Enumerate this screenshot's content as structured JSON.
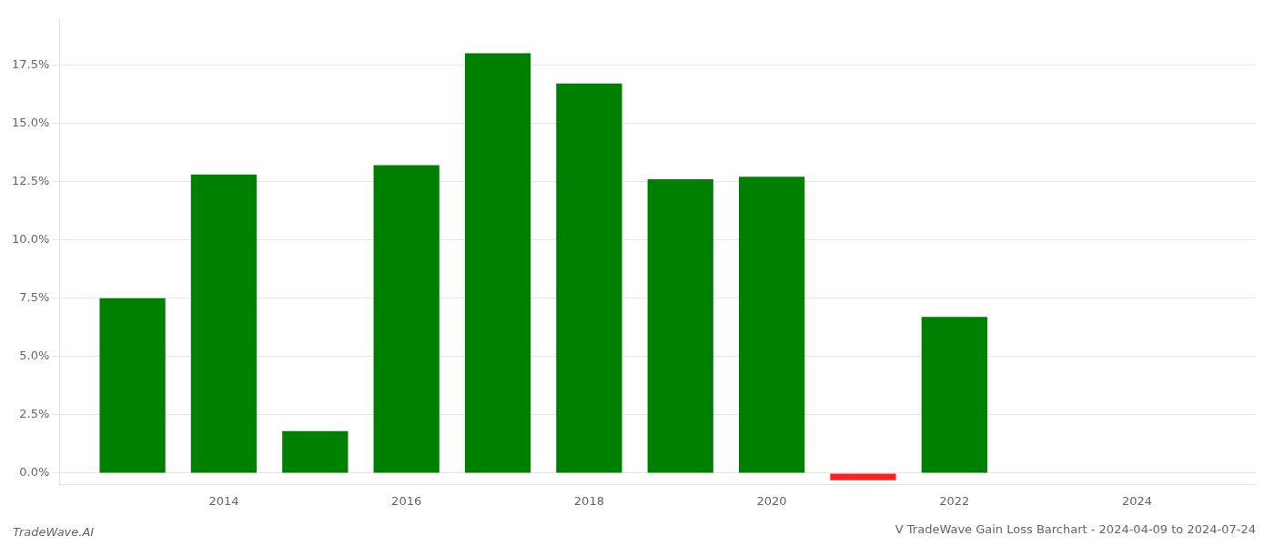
{
  "chart_data": {
    "type": "bar",
    "title": "V TradeWave Gain Loss Barchart - 2024-04-09 to 2024-07-24",
    "annotations": [
      "TradeWave.AI"
    ],
    "x": [
      2013,
      2014,
      2015,
      2016,
      2017,
      2018,
      2019,
      2020,
      2021,
      2022,
      2023
    ],
    "values": [
      0.075,
      0.128,
      0.018,
      0.132,
      0.18,
      0.167,
      0.126,
      0.127,
      -0.003,
      0.067,
      0.0
    ],
    "colors": [
      "#008000",
      "#008000",
      "#008000",
      "#008000",
      "#008000",
      "#008000",
      "#008000",
      "#008000",
      "#ff2222",
      "#008000",
      "#008000"
    ],
    "xlim": [
      2012.2,
      2025.3
    ],
    "xticks": [
      2014,
      2016,
      2018,
      2020,
      2022,
      2024
    ],
    "ylim": [
      -0.005,
      0.195
    ],
    "yticks": [
      {
        "value": 0.0,
        "label": "0.0%"
      },
      {
        "value": 0.025,
        "label": "2.5%"
      },
      {
        "value": 0.05,
        "label": "5.0%"
      },
      {
        "value": 0.075,
        "label": "7.5%"
      },
      {
        "value": 0.1,
        "label": "10.0%"
      },
      {
        "value": 0.125,
        "label": "12.5%"
      },
      {
        "value": 0.15,
        "label": "15.0%"
      },
      {
        "value": 0.175,
        "label": "17.5%"
      }
    ],
    "grid": true
  }
}
